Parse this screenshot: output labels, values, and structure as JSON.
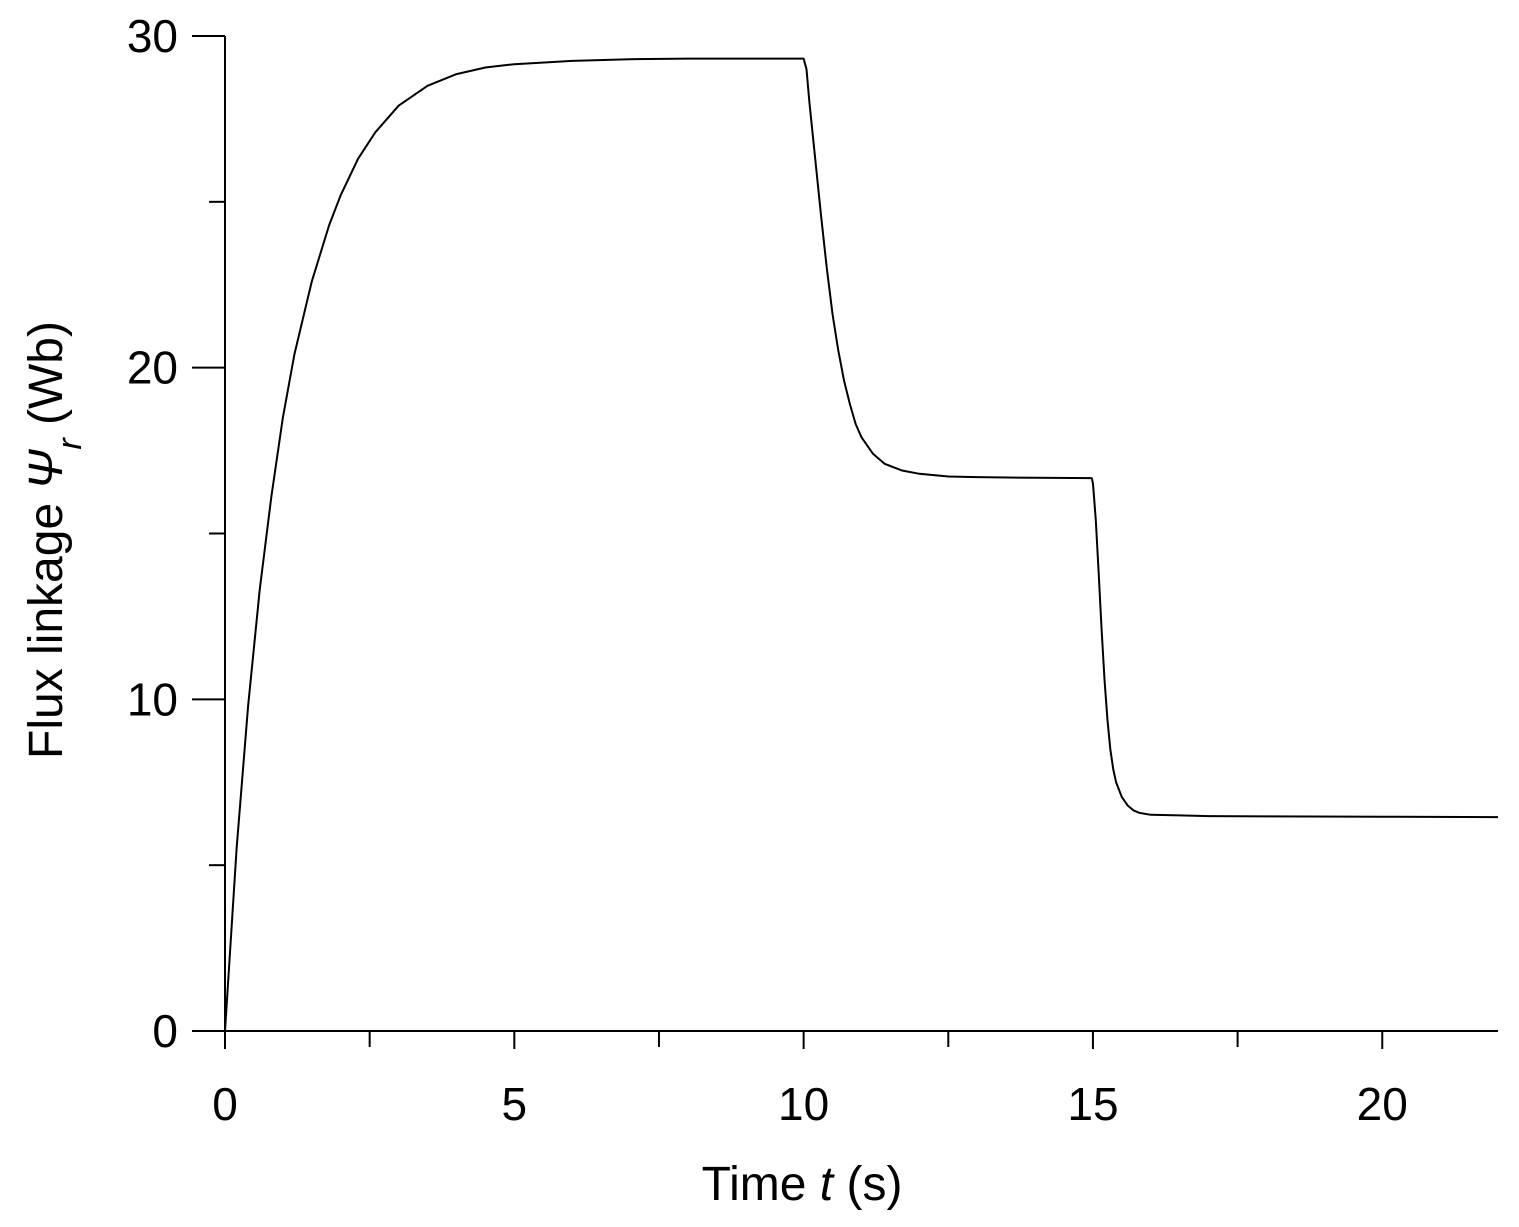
{
  "chart_data": {
    "type": "line",
    "title": "",
    "xlabel": {
      "prefix": "Time ",
      "var": "t",
      "suffix": " (s)"
    },
    "ylabel": {
      "prefix": "Flux linkage ",
      "var": "Ψ",
      "sub": "r",
      "suffix": " (Wb)"
    },
    "xlim": [
      0,
      22
    ],
    "ylim": [
      0,
      30
    ],
    "x_ticks": [
      0,
      5,
      10,
      15,
      20
    ],
    "x_minor_ticks": [
      2.5,
      7.5,
      12.5,
      17.5
    ],
    "y_ticks": [
      0,
      10,
      20,
      30
    ],
    "y_minor_ticks": [
      5,
      15,
      25
    ],
    "grid": false,
    "legend": "none",
    "colors": {
      "line": "#000000",
      "axes": "#000000",
      "background": "#ffffff"
    },
    "series": [
      {
        "x": [
          0,
          0.2,
          0.4,
          0.6,
          0.8,
          1.0,
          1.2,
          1.5,
          1.8,
          2.0,
          2.3,
          2.6,
          3.0,
          3.5,
          4.0,
          4.5,
          5.0,
          6.0,
          7.0,
          8.0,
          9.0,
          10.0,
          10.05,
          10.1,
          10.2,
          10.3,
          10.4,
          10.5,
          10.6,
          10.7,
          10.8,
          10.9,
          11.0,
          11.2,
          11.4,
          11.7,
          12.0,
          12.5,
          13.0,
          14.0,
          14.98,
          15.0,
          15.05,
          15.1,
          15.15,
          15.2,
          15.25,
          15.3,
          15.35,
          15.4,
          15.5,
          15.6,
          15.7,
          15.8,
          16.0,
          16.5,
          17.0,
          18.0,
          20.0,
          22.0
        ],
        "y": [
          0,
          5.5,
          9.8,
          13.3,
          16.1,
          18.5,
          20.4,
          22.6,
          24.3,
          25.2,
          26.3,
          27.1,
          27.9,
          28.5,
          28.85,
          29.05,
          29.15,
          29.25,
          29.3,
          29.32,
          29.32,
          29.32,
          29.0,
          28.0,
          26.3,
          24.6,
          23.0,
          21.6,
          20.5,
          19.6,
          18.9,
          18.3,
          17.9,
          17.4,
          17.1,
          16.9,
          16.8,
          16.72,
          16.7,
          16.68,
          16.67,
          16.5,
          15.4,
          13.8,
          12.1,
          10.6,
          9.4,
          8.5,
          7.9,
          7.5,
          7.05,
          6.8,
          6.65,
          6.58,
          6.52,
          6.5,
          6.48,
          6.47,
          6.46,
          6.45
        ]
      }
    ]
  }
}
